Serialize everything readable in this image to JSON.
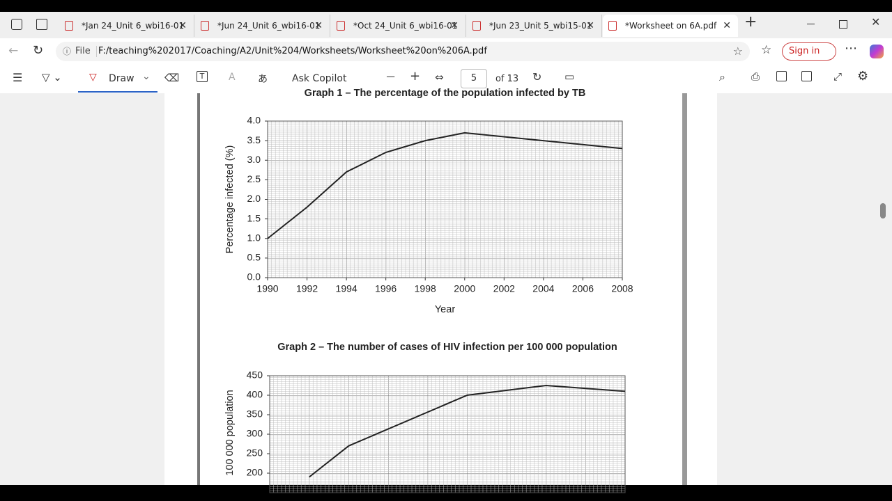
{
  "tabs": [
    {
      "title": "*Jan 24_Unit 6_wbi16-01"
    },
    {
      "title": "*Jun 24_Unit 6_wbi16-01"
    },
    {
      "title": "*Oct 24_Unit 6_wbi16-01"
    },
    {
      "title": "*Jun 23_Unit 5_wbi15-01"
    },
    {
      "title": "*Worksheet on 6A.pdf",
      "active": true
    }
  ],
  "address_bar": {
    "scheme": "File",
    "url": "F:/teaching%202017/Coaching/A2/Unit%204/Worksheets/Worksheet%20on%206A.pdf"
  },
  "profile": {
    "sign_in": "Sign in"
  },
  "pdf_toolbar": {
    "draw": "Draw",
    "ask_copilot": "Ask Copilot",
    "page_number": "5",
    "page_count": "of 13"
  },
  "document": {
    "charts": [
      {
        "type": "line",
        "title": "Graph 1 – The percentage of the population infected by TB",
        "x": [
          1990,
          1992,
          1994,
          1996,
          1998,
          2000,
          2008
        ],
        "values": [
          1.0,
          1.8,
          2.7,
          3.2,
          3.5,
          3.7,
          3.3
        ],
        "color": "#222222",
        "xlim": [
          1990,
          2008
        ],
        "xticks": [
          1990,
          1992,
          1994,
          1996,
          1998,
          2000,
          2002,
          2004,
          2006,
          2008
        ],
        "ylim": [
          0,
          4
        ],
        "yticks": [
          {
            "value": 0,
            "label": "0.0"
          },
          0.5,
          {
            "value": 1,
            "label": "1.0"
          },
          1.5,
          {
            "value": 2,
            "label": "2.0"
          },
          2.5,
          {
            "value": 3,
            "label": "3.0"
          },
          3.5,
          {
            "value": 4,
            "label": "4.0"
          }
        ],
        "xlabel": "Year",
        "ylabel": "Percentage infected (%)",
        "grid": true
      },
      {
        "type": "line",
        "title": "Graph 2 – The number of cases of HIV infection per 100 000 population",
        "x": [
          1992,
          1994,
          2000,
          2004,
          2008
        ],
        "values": [
          190,
          270,
          400,
          425,
          410
        ],
        "color": "#222222",
        "xlim": [
          1990,
          2008
        ],
        "ylim": [
          150,
          450
        ],
        "yticks": [
          200,
          250,
          300,
          350,
          400,
          450
        ],
        "ylabel": "100 000 population",
        "grid": true
      }
    ]
  }
}
